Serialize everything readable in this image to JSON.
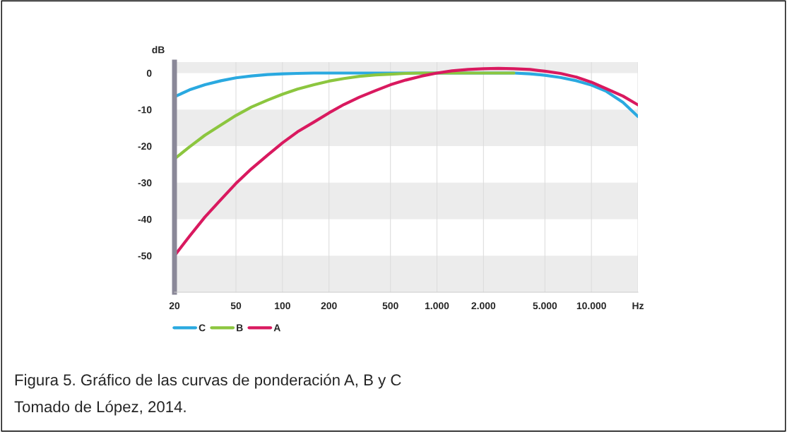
{
  "chart_data": {
    "type": "line",
    "ylabel": "dB",
    "log": "x",
    "xlim": [
      20,
      20000
    ],
    "xticks": [
      20,
      50,
      100,
      200,
      500,
      {
        "value": 1000,
        "label": "1.000"
      },
      {
        "value": 2000,
        "label": "2.000"
      },
      {
        "value": 5000,
        "label": "5.000"
      },
      {
        "value": 10000,
        "label": "10.000"
      },
      {
        "value": 20000,
        "label": "Hz"
      }
    ],
    "ylim": [
      -60,
      3
    ],
    "yticks": [
      0,
      -10,
      -20,
      -30,
      -40,
      -50
    ],
    "grid": "x",
    "legend": "bottom left",
    "line_style": "solid",
    "marker": "none",
    "bands": [
      {
        "axis": "y",
        "from": 0,
        "to": 3,
        "color": "#ececec"
      },
      {
        "axis": "y",
        "from": -10,
        "to": -20,
        "color": "#ececec"
      },
      {
        "axis": "y",
        "from": -30,
        "to": -40,
        "color": "#ececec"
      },
      {
        "axis": "y",
        "from": -50,
        "to": -60,
        "color": "#ececec"
      }
    ],
    "series": [
      {
        "name": "C",
        "color": "#2aa9e0",
        "x": [
          20,
          25,
          31.5,
          40,
          50,
          63,
          80,
          100,
          125,
          160,
          200,
          500,
          1000,
          2000,
          3150,
          4000,
          5000,
          6300,
          8000,
          10000,
          12500,
          16000,
          20000
        ],
        "values": [
          -6.5,
          -4.6,
          -3.2,
          -2.1,
          -1.3,
          -0.8,
          -0.4,
          -0.2,
          -0.1,
          0,
          0,
          0,
          0,
          0,
          0,
          -0.2,
          -0.6,
          -1.2,
          -2.1,
          -3.3,
          -5.0,
          -8.0,
          -11.9
        ]
      },
      {
        "name": "B",
        "color": "#8cc63f",
        "x": [
          20,
          25,
          31.5,
          40,
          50,
          63,
          80,
          100,
          125,
          160,
          200,
          250,
          315,
          400,
          500,
          630,
          800,
          1000,
          2000,
          3150
        ],
        "values": [
          -23.5,
          -20.2,
          -17.0,
          -14.2,
          -11.6,
          -9.3,
          -7.4,
          -5.8,
          -4.4,
          -3.2,
          -2.2,
          -1.5,
          -0.9,
          -0.5,
          -0.3,
          -0.1,
          0,
          0,
          0,
          0
        ]
      },
      {
        "name": "A",
        "color": "#d9195f",
        "x": [
          20,
          25,
          31.5,
          40,
          50,
          63,
          80,
          100,
          125,
          160,
          200,
          250,
          315,
          400,
          500,
          630,
          800,
          1000,
          1250,
          1600,
          2000,
          2500,
          3150,
          4000,
          5000,
          6300,
          8000,
          10000,
          12500,
          16000,
          20000
        ],
        "values": [
          -50,
          -44.7,
          -39.4,
          -34.6,
          -30.2,
          -26.2,
          -22.5,
          -19.1,
          -16.1,
          -13.4,
          -10.9,
          -8.6,
          -6.6,
          -4.8,
          -3.2,
          -1.9,
          -0.8,
          0,
          0.6,
          1.0,
          1.2,
          1.3,
          1.2,
          1.0,
          0.5,
          -0.1,
          -1.1,
          -2.5,
          -4.3,
          -6.3,
          -8.7
        ]
      }
    ],
    "annotations": [
      "Figura 5. Gráfico de las curvas de ponderación A, B y C",
      "Tomado de López, 2014."
    ]
  }
}
